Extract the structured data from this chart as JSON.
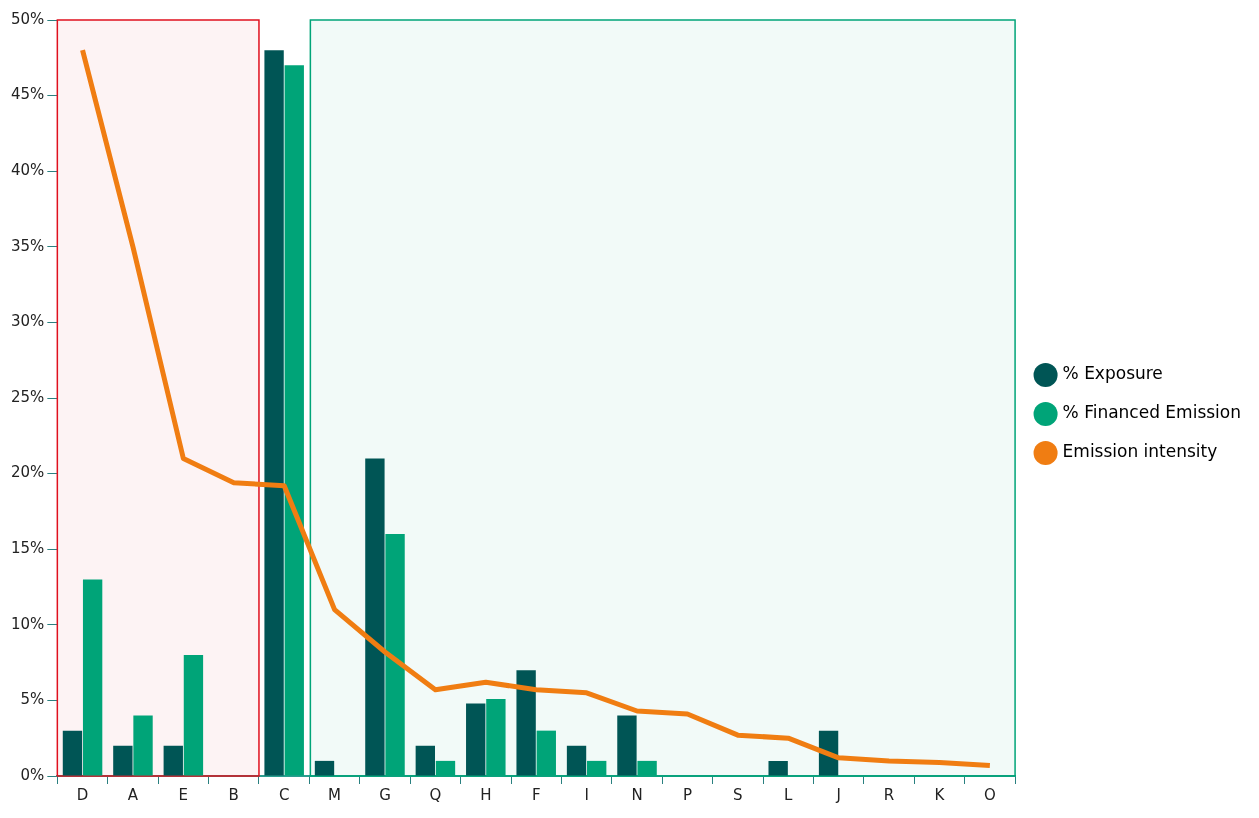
{
  "chart_data": {
    "type": "bar",
    "categories": [
      "D",
      "A",
      "E",
      "B",
      "C",
      "M",
      "G",
      "Q",
      "H",
      "F",
      "I",
      "N",
      "P",
      "S",
      "L",
      "J",
      "R",
      "K",
      "O"
    ],
    "series": [
      {
        "name": "% Exposure",
        "color": "#005555",
        "values": [
          3,
          2,
          2,
          0,
          48,
          1,
          21,
          2,
          4.8,
          7,
          2,
          4,
          0,
          0,
          1,
          3,
          0,
          0,
          0
        ]
      },
      {
        "name": "% Financed Emission",
        "color": "#00a478",
        "values": [
          13,
          4,
          8,
          0,
          47,
          0,
          16,
          1,
          5.1,
          3,
          1,
          1,
          0,
          0,
          0,
          0,
          0,
          0,
          0
        ]
      },
      {
        "name": "Emission intensity",
        "type": "line",
        "color": "#f07d12",
        "values": [
          48,
          35,
          21,
          19.4,
          19.2,
          11,
          8.2,
          5.7,
          6.2,
          5.7,
          5.5,
          4.3,
          4.1,
          2.7,
          2.5,
          1.2,
          1.0,
          0.9,
          0.7
        ]
      }
    ],
    "ylim": [
      0,
      50
    ],
    "yticks": [
      {
        "value": 0,
        "label": "0%"
      },
      {
        "value": 5,
        "label": "5%"
      },
      {
        "value": 10,
        "label": "10%"
      },
      {
        "value": 15,
        "label": "15%"
      },
      {
        "value": 20,
        "label": "20%"
      },
      {
        "value": 25,
        "label": "25%"
      },
      {
        "value": 30,
        "label": "30%"
      },
      {
        "value": 35,
        "label": "35%"
      },
      {
        "value": 40,
        "label": "40%"
      },
      {
        "value": 45,
        "label": "45%"
      },
      {
        "value": 50,
        "label": "50%"
      }
    ],
    "bands": [
      {
        "axis": "x",
        "from": "D",
        "to": "B",
        "color": "#e0101e"
      },
      {
        "axis": "x",
        "from": "M",
        "to": "O",
        "color": "#00a478"
      }
    ],
    "grid": false,
    "legend": "right",
    "marker": "none",
    "line_style": "solid"
  }
}
